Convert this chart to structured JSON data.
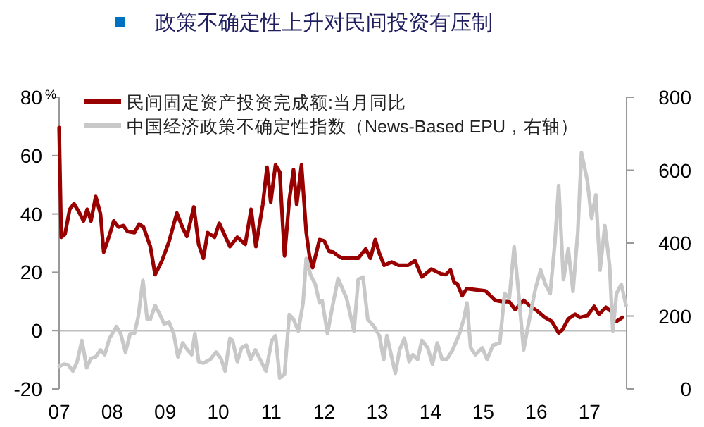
{
  "chart_data": {
    "type": "line",
    "title": "政策不确定性上升对民间投资有压制",
    "ylabel": "%",
    "legend": "top left",
    "grid": false,
    "marker": "none",
    "line_style": "solid",
    "xlim": [
      2007,
      2017.7
    ],
    "xticks": [
      {
        "value": 2007,
        "label": "07"
      },
      {
        "value": 2008,
        "label": "08"
      },
      {
        "value": 2009,
        "label": "09"
      },
      {
        "value": 2010,
        "label": "10"
      },
      {
        "value": 2011,
        "label": "11"
      },
      {
        "value": 2012,
        "label": "12"
      },
      {
        "value": 2013,
        "label": "13"
      },
      {
        "value": 2014,
        "label": "14"
      },
      {
        "value": 2015,
        "label": "15"
      },
      {
        "value": 2016,
        "label": "16"
      },
      {
        "value": 2017,
        "label": "17"
      }
    ],
    "ylim": [
      -20,
      80
    ],
    "yticks": [
      -20,
      0,
      20,
      40,
      60,
      80
    ],
    "y2lim": [
      0,
      800
    ],
    "y2ticks": [
      0,
      200,
      400,
      600,
      800
    ],
    "ref_lines": [
      {
        "axis": "y",
        "value": 0,
        "color": "#bfbfbf"
      }
    ],
    "series": [
      {
        "name": "民间固定资产投资完成额:当月同比",
        "color": "#990000",
        "x": [
          2007.0,
          2007.04,
          2007.11,
          2007.2,
          2007.28,
          2007.37,
          2007.46,
          2007.53,
          2007.6,
          2007.69,
          2007.78,
          2007.84,
          2007.95,
          2008.03,
          2008.12,
          2008.21,
          2008.29,
          2008.42,
          2008.51,
          2008.59,
          2008.72,
          2008.81,
          2008.94,
          2009.07,
          2009.22,
          2009.33,
          2009.41,
          2009.54,
          2009.63,
          2009.72,
          2009.8,
          2009.93,
          2010.02,
          2010.1,
          2010.22,
          2010.36,
          2010.51,
          2010.62,
          2010.71,
          2010.84,
          2010.92,
          2010.99,
          2011.08,
          2011.16,
          2011.25,
          2011.34,
          2011.42,
          2011.48,
          2011.57,
          2011.66,
          2011.72,
          2011.78,
          2011.91,
          2012.0,
          2012.09,
          2012.17,
          2012.26,
          2012.34,
          2012.64,
          2012.78,
          2012.87,
          2012.96,
          2013.04,
          2013.13,
          2013.27,
          2013.4,
          2013.58,
          2013.71,
          2013.84,
          2014.02,
          2014.2,
          2014.29,
          2014.38,
          2014.45,
          2014.51,
          2014.6,
          2014.69,
          2014.82,
          2015.04,
          2015.22,
          2015.36,
          2015.49,
          2015.6,
          2015.76,
          2015.89,
          2016.02,
          2016.16,
          2016.29,
          2016.42,
          2016.49,
          2016.6,
          2016.73,
          2016.82,
          2016.96,
          2017.09,
          2017.18,
          2017.31,
          2017.4,
          2017.45,
          2017.51,
          2017.62
        ],
        "values": [
          69.6,
          32,
          33,
          41.6,
          43.5,
          40.8,
          37.6,
          41.6,
          37.6,
          46,
          40,
          26.9,
          32.8,
          37.6,
          35.5,
          36,
          34,
          33.6,
          36.5,
          35.5,
          28.8,
          19.2,
          24,
          30.4,
          40.3,
          35.2,
          32.3,
          42.4,
          29.6,
          24.8,
          33.6,
          32,
          36.8,
          33.6,
          28.8,
          32,
          29.6,
          41.6,
          28.8,
          43.2,
          56,
          44,
          56.8,
          54.4,
          25.6,
          44.8,
          55.2,
          43.2,
          56.8,
          33.6,
          25.6,
          21.6,
          31.2,
          30.7,
          27.2,
          26.9,
          25.6,
          24.8,
          24.8,
          28,
          24.8,
          31.2,
          26.4,
          22.4,
          23.5,
          22.4,
          22.4,
          24,
          18.4,
          21.1,
          19.5,
          19.2,
          20.8,
          16.5,
          16,
          12,
          14.4,
          14.1,
          13.6,
          10.4,
          9.9,
          9.9,
          7.2,
          10.4,
          8.3,
          6.7,
          4.5,
          3.2,
          -0.8,
          0.3,
          4,
          5.6,
          4.5,
          5.1,
          8.3,
          5.6,
          8,
          6.7,
          null,
          3.2,
          4.5
        ]
      },
      {
        "name": "中国经济政策不确定性指数（News-Based EPU，右轴）",
        "color": "#c8c8c8",
        "axis": "y2",
        "x": [
          2007.0,
          2007.09,
          2007.17,
          2007.26,
          2007.34,
          2007.43,
          2007.52,
          2007.6,
          2007.69,
          2007.78,
          2007.86,
          2007.95,
          2008.08,
          2008.16,
          2008.25,
          2008.34,
          2008.42,
          2008.49,
          2008.58,
          2008.66,
          2008.72,
          2008.81,
          2008.9,
          2008.98,
          2009.07,
          2009.16,
          2009.24,
          2009.33,
          2009.42,
          2009.5,
          2009.56,
          2009.63,
          2009.72,
          2009.85,
          2009.96,
          2010.05,
          2010.13,
          2010.22,
          2010.27,
          2010.36,
          2010.44,
          2010.53,
          2010.61,
          2010.7,
          2010.79,
          2010.9,
          2011.01,
          2011.08,
          2011.16,
          2011.25,
          2011.34,
          2011.42,
          2011.51,
          2011.6,
          2011.66,
          2011.74,
          2011.83,
          2011.91,
          2011.96,
          2012.06,
          2012.15,
          2012.26,
          2012.42,
          2012.56,
          2012.64,
          2012.73,
          2012.82,
          2012.94,
          2013.04,
          2013.12,
          2013.18,
          2013.27,
          2013.34,
          2013.42,
          2013.51,
          2013.6,
          2013.67,
          2013.76,
          2013.84,
          2013.95,
          2014.04,
          2014.13,
          2014.22,
          2014.31,
          2014.42,
          2014.54,
          2014.63,
          2014.69,
          2014.76,
          2014.85,
          2014.98,
          2015.07,
          2015.18,
          2015.31,
          2015.4,
          2015.49,
          2015.58,
          2015.64,
          2015.76,
          2015.84,
          2015.98,
          2016.08,
          2016.17,
          2016.26,
          2016.35,
          2016.42,
          2016.51,
          2016.6,
          2016.69,
          2016.78,
          2016.85,
          2016.96,
          2017.04,
          2017.12,
          2017.2,
          2017.29,
          2017.38,
          2017.44,
          2017.51,
          2017.6,
          2017.69
        ],
        "values": [
          62,
          68,
          66,
          49,
          75,
          133,
          58,
          84,
          88,
          107,
          94,
          139,
          171,
          152,
          101,
          152,
          152,
          197,
          298,
          191,
          191,
          229,
          204,
          178,
          184,
          152,
          88,
          126,
          107,
          94,
          152,
          75,
          71,
          81,
          101,
          84,
          49,
          139,
          133,
          75,
          113,
          120,
          81,
          107,
          81,
          49,
          133,
          146,
          30,
          40,
          204,
          191,
          159,
          236,
          358,
          313,
          287,
          236,
          242,
          152,
          223,
          303,
          249,
          159,
          300,
          307,
          191,
          171,
          146,
          81,
          146,
          88,
          43,
          107,
          139,
          75,
          94,
          81,
          133,
          113,
          68,
          126,
          81,
          81,
          107,
          148,
          191,
          236,
          113,
          94,
          113,
          81,
          120,
          126,
          262,
          249,
          390,
          300,
          107,
          171,
          274,
          326,
          287,
          262,
          403,
          558,
          300,
          384,
          268,
          429,
          648,
          571,
          468,
          532,
          326,
          448,
          339,
          159,
          262,
          287,
          229
        ]
      }
    ]
  }
}
